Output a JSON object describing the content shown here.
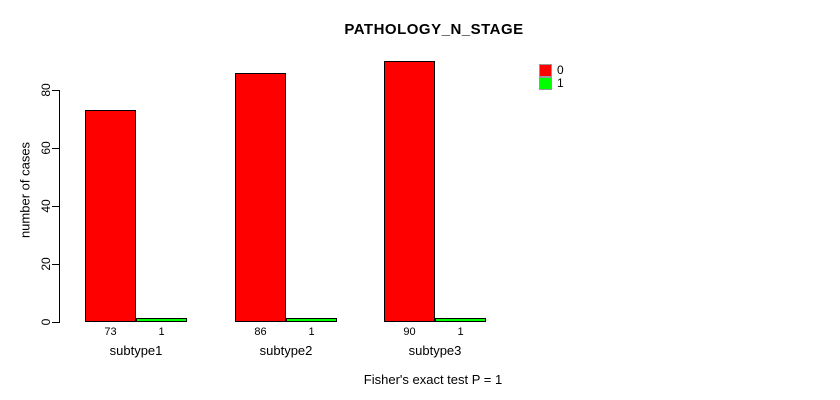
{
  "title": "PATHOLOGY_N_STAGE",
  "ylabel": "number of cases",
  "caption": "Fisher's exact test P = 1",
  "colors": {
    "series0": "#ff0000",
    "series1": "#00ff00",
    "axis": "#000000",
    "background": "#ffffff"
  },
  "legend": {
    "position": "top-right",
    "entries": [
      {
        "label": "0",
        "color": "#ff0000"
      },
      {
        "label": "1",
        "color": "#00ff00"
      }
    ]
  },
  "chart_data": {
    "type": "bar",
    "title": "PATHOLOGY_N_STAGE",
    "xlabel": "",
    "ylabel": "number of cases",
    "categories": [
      "subtype1",
      "subtype2",
      "subtype3"
    ],
    "series": [
      {
        "name": "0",
        "color": "#ff0000",
        "values": [
          73,
          86,
          90
        ]
      },
      {
        "name": "1",
        "color": "#00ff00",
        "values": [
          1,
          1,
          1
        ]
      }
    ],
    "bar_value_labels": [
      [
        "73",
        "1"
      ],
      [
        "86",
        "1"
      ],
      [
        "90",
        "1"
      ]
    ],
    "ylim": [
      0,
      80
    ],
    "yticks": [
      0,
      20,
      40,
      60,
      80
    ],
    "grid": false,
    "legend_position": "top-right",
    "annotation": "Fisher's exact test P = 1"
  }
}
